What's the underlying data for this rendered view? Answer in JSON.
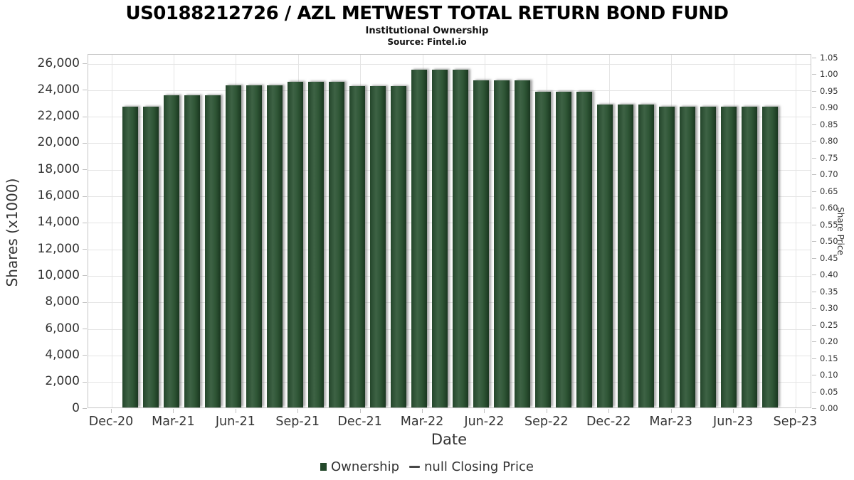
{
  "header": {
    "title": "US0188212726 / AZL METWEST TOTAL RETURN BOND FUND",
    "subtitle": "Institutional Ownership",
    "source": "Source: Fintel.io"
  },
  "chart_data": {
    "type": "bar",
    "title": "US0188212726 / AZL METWEST TOTAL RETURN BOND FUND",
    "subtitle": "Institutional Ownership",
    "source": "Source: Fintel.io",
    "xlabel": "Date",
    "ylabel_left": "Shares (x1000)",
    "ylabel_right": "Share Price",
    "grid": true,
    "legend_position": "bottom",
    "ylim_left": [
      0,
      26700
    ],
    "ylim_right": [
      0,
      1.06
    ],
    "categories": [
      "Dec-20",
      "Jan-21",
      "Feb-21",
      "Mar-21",
      "Apr-21",
      "May-21",
      "Jun-21",
      "Jul-21",
      "Aug-21",
      "Sep-21",
      "Oct-21",
      "Nov-21",
      "Dec-21",
      "Jan-22",
      "Feb-22",
      "Mar-22",
      "Apr-22",
      "May-22",
      "Jun-22",
      "Jul-22",
      "Aug-22",
      "Sep-22",
      "Oct-22",
      "Nov-22",
      "Dec-22",
      "Jan-23",
      "Feb-23",
      "Mar-23",
      "Apr-23",
      "May-23",
      "Jun-23",
      "Jul-23"
    ],
    "series": [
      {
        "name": "Ownership",
        "type": "bar",
        "axis": "left",
        "values": [
          22700,
          22700,
          23550,
          23550,
          23550,
          24270,
          24270,
          24270,
          24560,
          24560,
          24560,
          24220,
          24220,
          24220,
          25460,
          25460,
          25460,
          24660,
          24660,
          24660,
          23800,
          23800,
          23800,
          22840,
          22840,
          22840,
          22660,
          22660,
          22660,
          22660,
          22660,
          22660
        ]
      },
      {
        "name": "null Closing Price",
        "type": "line",
        "axis": "right",
        "values": []
      }
    ],
    "x_tick_labels": [
      "Dec-20",
      "Mar-21",
      "Jun-21",
      "Sep-21",
      "Dec-21",
      "Mar-22",
      "Jun-22",
      "Sep-22",
      "Dec-22",
      "Mar-23",
      "Jun-23",
      "Sep-23"
    ],
    "y_tick_labels_left": [
      "0",
      "2,000",
      "4,000",
      "6,000",
      "8,000",
      "10,000",
      "12,000",
      "14,000",
      "16,000",
      "18,000",
      "20,000",
      "22,000",
      "24,000",
      "26,000"
    ],
    "y_tick_values_left": [
      0,
      2000,
      4000,
      6000,
      8000,
      10000,
      12000,
      14000,
      16000,
      18000,
      20000,
      22000,
      24000,
      26000
    ],
    "y_tick_labels_right": [
      "0.00",
      "0.05",
      "0.10",
      "0.15",
      "0.20",
      "0.25",
      "0.30",
      "0.35",
      "0.40",
      "0.45",
      "0.50",
      "0.55",
      "0.60",
      "0.65",
      "0.70",
      "0.75",
      "0.80",
      "0.85",
      "0.90",
      "0.95",
      "1.00",
      "1.05"
    ],
    "y_tick_values_right": [
      0,
      0.05,
      0.1,
      0.15,
      0.2,
      0.25,
      0.3,
      0.35,
      0.4,
      0.45,
      0.5,
      0.55,
      0.6,
      0.65,
      0.7,
      0.75,
      0.8,
      0.85,
      0.9,
      0.95,
      1.0,
      1.05
    ]
  },
  "legend": {
    "items": [
      {
        "label": "Ownership",
        "marker": "square",
        "color": "#24492b"
      },
      {
        "label": "null Closing Price",
        "marker": "line",
        "color": "#474747"
      }
    ]
  },
  "colors": {
    "bar_green_dark": "#1a3720",
    "bar_green_mid": "#2f5636",
    "bar_green_light": "#3e6345",
    "grid": "#e4e4e4",
    "axis_border": "#c6c6c6",
    "tick_text": "#333333"
  }
}
